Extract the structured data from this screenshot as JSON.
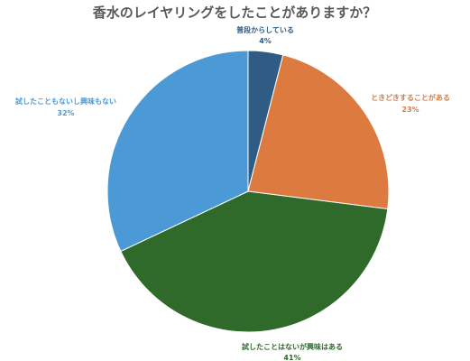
{
  "chart_data": {
    "type": "pie",
    "title": "香水のレイヤリングをしたことがありますか？",
    "start_angle_deg": 0,
    "direction": "clockwise",
    "slices": [
      {
        "label": "普段からしている",
        "value": 4,
        "value_label": "4%",
        "color": "#2f5c84"
      },
      {
        "label": "ときどきすることがある",
        "value": 23,
        "value_label": "23%",
        "color": "#dc7a3f"
      },
      {
        "label": "試したことはないが興味はある",
        "value": 41,
        "value_label": "41%",
        "color": "#2f6a2a"
      },
      {
        "label": "試したこともないし興味もない",
        "value": 32,
        "value_label": "32%",
        "color": "#4b9ad6"
      }
    ]
  }
}
